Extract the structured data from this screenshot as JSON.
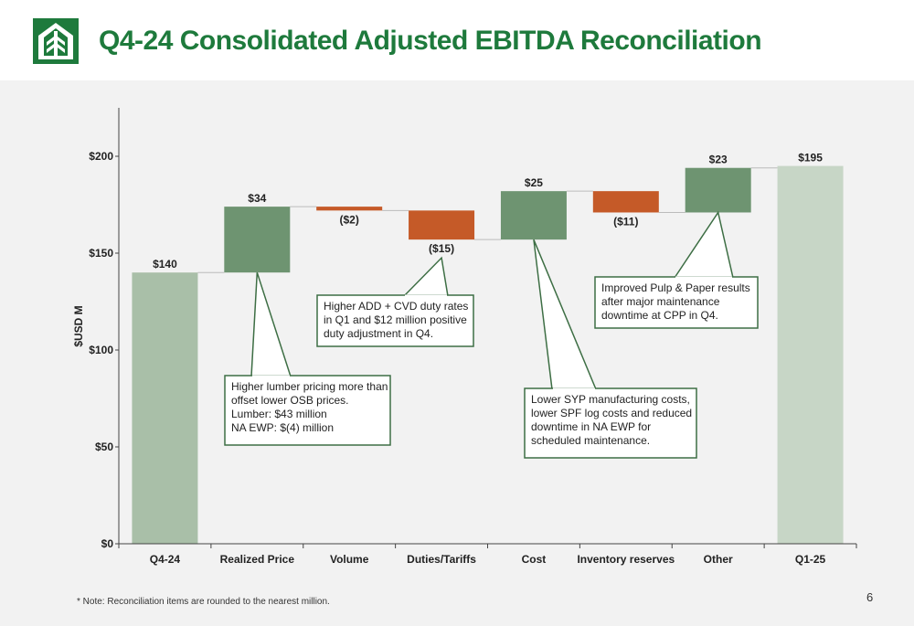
{
  "header": {
    "title": "Q4-24 Consolidated Adjusted EBITDA Reconciliation"
  },
  "colors": {
    "brand_green": "#1e7a3c",
    "total_bar": "#a9bfa8",
    "total_bar_end": "#c7d6c6",
    "increase_bar": "#6e9471",
    "decrease_bar": "#c55a28"
  },
  "chart_data": {
    "type": "bar",
    "subtype": "waterfall",
    "categories": [
      "Q4-24",
      "Realized Price",
      "Volume",
      "Duties/Tariffs",
      "Cost",
      "Inventory reserves",
      "Other",
      "Q1-25"
    ],
    "values": [
      140,
      34,
      -2,
      -15,
      25,
      -11,
      23,
      195
    ],
    "kinds": [
      "total",
      "increase",
      "decrease",
      "decrease",
      "increase",
      "decrease",
      "increase",
      "total"
    ],
    "data_labels": [
      "$140",
      "$34",
      "($2)",
      "($15)",
      "$25",
      "($11)",
      "$23",
      "$195"
    ],
    "ylabel": "$USD M",
    "ylim": [
      0,
      225
    ],
    "yticks": [
      0,
      50,
      100,
      150,
      200
    ],
    "ytick_labels": [
      "$0",
      "$50",
      "$100",
      "$150",
      "$200"
    ],
    "grid": false,
    "callouts": [
      {
        "category": "Realized Price",
        "lines": [
          "Higher lumber pricing more than",
          "offset lower OSB prices.",
          "Lumber: $43 million",
          "NA EWP: $(4) million"
        ]
      },
      {
        "category": "Duties/Tariffs",
        "lines": [
          "Higher ADD + CVD duty rates",
          "in Q1 and $12 million positive",
          "duty adjustment in Q4."
        ]
      },
      {
        "category": "Cost",
        "lines": [
          "Lower SYP manufacturing costs,",
          "lower SPF log costs and reduced",
          "downtime in NA EWP for",
          "scheduled maintenance."
        ]
      },
      {
        "category": "Other",
        "lines": [
          "Improved Pulp & Paper results",
          "after major maintenance",
          "downtime at CPP in Q4."
        ]
      }
    ]
  },
  "footer": {
    "note": "* Note: Reconciliation items are rounded to the nearest million.",
    "page_number": "6"
  }
}
